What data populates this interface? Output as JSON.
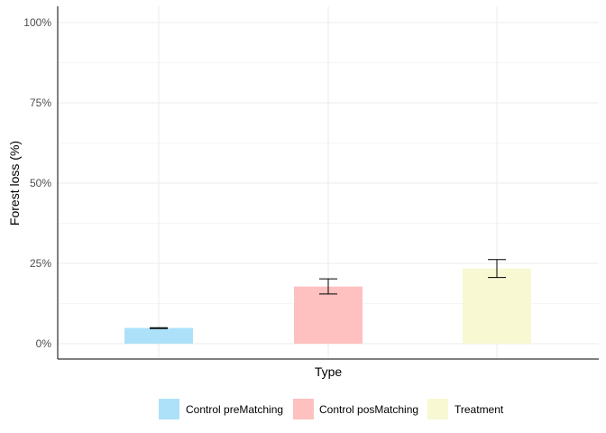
{
  "chart_data": {
    "type": "bar",
    "categories": [
      "Control preMatching",
      "Control posMatching",
      "Treatment"
    ],
    "values": [
      4.9,
      17.8,
      23.4
    ],
    "error_low": [
      4.7,
      15.5,
      20.6
    ],
    "error_high": [
      5.0,
      20.2,
      26.2
    ],
    "colors": [
      "#ade1fa",
      "#ffc0c0",
      "#f8f8d2"
    ],
    "xlabel": "Type",
    "ylabel": "Forest loss (%)",
    "ylim": [
      0,
      100
    ],
    "y_ticks": [
      0,
      25,
      50,
      75,
      100
    ],
    "y_tick_labels": [
      "0%",
      "25%",
      "50%",
      "75%",
      "100%"
    ],
    "grid": true,
    "legend_position": "bottom",
    "legend": [
      "Control preMatching",
      "Control posMatching",
      "Treatment"
    ]
  }
}
